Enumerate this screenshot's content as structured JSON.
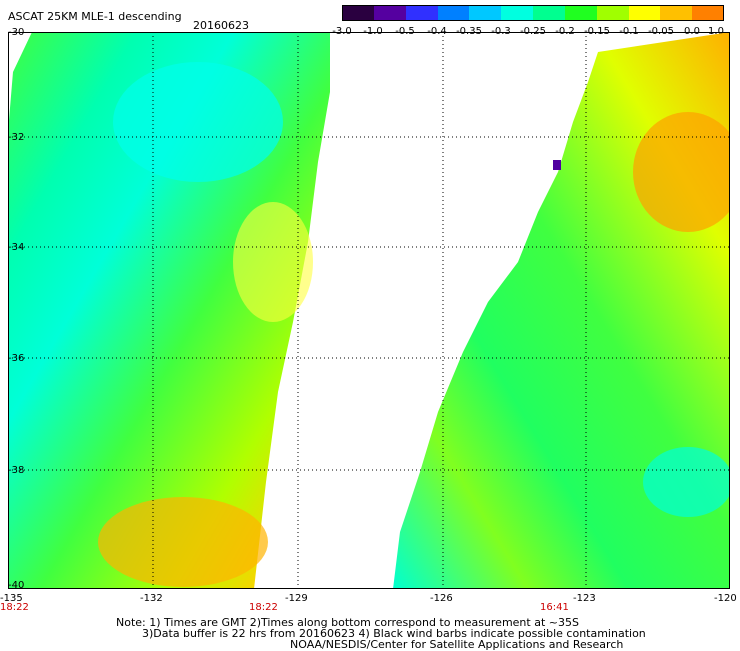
{
  "header": {
    "title": "ASCAT 25KM MLE-1 descending",
    "date": "20160623"
  },
  "colorbar": {
    "labels": [
      "-3.0",
      "-1.0",
      "-0.5",
      "-0.4",
      "-0.35",
      "-0.3",
      "-0.25",
      "-0.2",
      "-0.15",
      "-0.1",
      "-0.05",
      "0.0",
      "1.0"
    ],
    "colors": [
      "#2a0040",
      "#5500a0",
      "#3030ff",
      "#0080ff",
      "#00c8ff",
      "#00ffe0",
      "#00ff90",
      "#20ff20",
      "#a0ff00",
      "#ffff00",
      "#ffc000",
      "#ff8000",
      "#ff2000"
    ]
  },
  "map": {
    "lat_labels": [
      "-30",
      "-32",
      "-34",
      "-36",
      "-38",
      "-40"
    ],
    "lon_labels": [
      "-135",
      "-132",
      "-129",
      "-126",
      "-123",
      "-120"
    ],
    "time_labels": [
      "18:22",
      "18:22",
      "16:41"
    ],
    "gridline_style": "dotted"
  },
  "footer": {
    "line1": "Note: 1) Times are GMT 2)Times along bottom correspond to measurement at ~35S",
    "line2": "3)Data buffer is 22 hrs from 20160623 4) Black wind barbs indicate possible contamination",
    "line3": "NOAA/NESDIS/Center for Satellite Applications and Research"
  }
}
